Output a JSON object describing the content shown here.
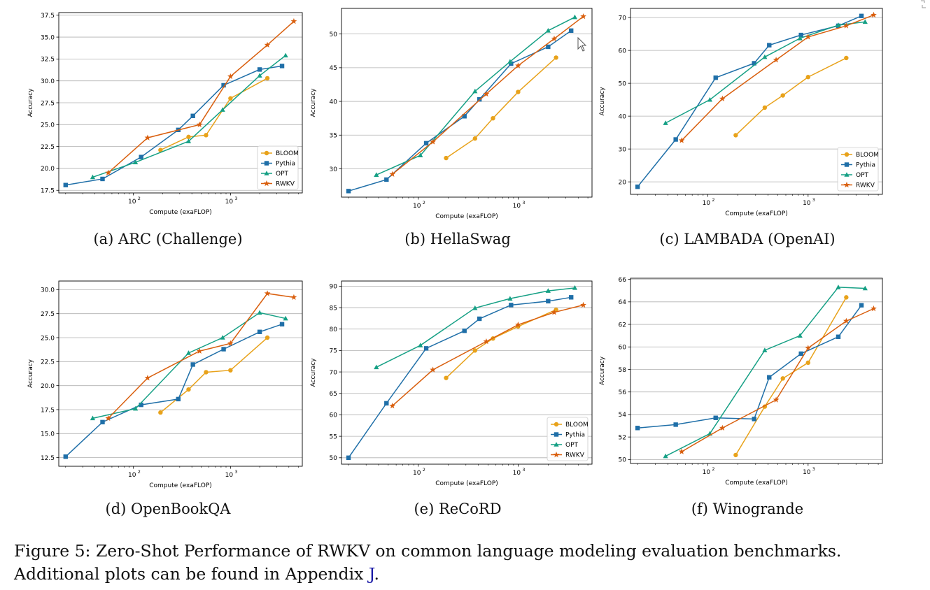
{
  "figure": {
    "caption_text": "Figure 5: Zero-Shot Performance of RWKV on common language modeling evaluation benchmarks. Additional plots can be found in Appendix ",
    "caption_link": "J",
    "caption_end": "."
  },
  "colors": {
    "BLOOM": "#e8a21a",
    "Pythia": "#1f6fa8",
    "OPT": "#16a085",
    "RWKV": "#d95f0e"
  },
  "cursor_icon": "mouse-pointer-icon",
  "chart_data": [
    {
      "type": "line",
      "caption": "(a) ARC (Challenge)",
      "xlabel": "Compute (exaFLOP)",
      "ylabel": "Accuracy",
      "xscale": "log",
      "xlim": [
        17,
        5500
      ],
      "ylim": [
        17.2,
        37.8
      ],
      "yticks": [
        17.5,
        20.0,
        22.5,
        25.0,
        27.5,
        30.0,
        32.5,
        35.0,
        37.5
      ],
      "ytick_labels": [
        "17.5",
        "20.0",
        "22.5",
        "25.0",
        "27.5",
        "30.0",
        "32.5",
        "35.0",
        "37.5"
      ],
      "grid": "horizontal",
      "legend": "bottom-right",
      "series": [
        {
          "name": "BLOOM",
          "marker": "circle",
          "x": [
            190,
            370,
            560,
            1000,
            2400
          ],
          "y": [
            22.1,
            23.6,
            23.8,
            28.0,
            30.3
          ]
        },
        {
          "name": "Pythia",
          "marker": "square",
          "x": [
            20,
            48,
            120,
            290,
            410,
            850,
            2000,
            3400
          ],
          "y": [
            18.1,
            18.8,
            21.3,
            24.4,
            26.0,
            29.5,
            31.3,
            31.7
          ]
        },
        {
          "name": "OPT",
          "marker": "triangle",
          "x": [
            38,
            105,
            370,
            830,
            2000,
            3700
          ],
          "y": [
            19.0,
            20.7,
            23.1,
            26.7,
            30.6,
            32.9
          ]
        },
        {
          "name": "RWKV",
          "marker": "star",
          "x": [
            55,
            140,
            480,
            1000,
            2400,
            4500
          ],
          "y": [
            19.5,
            23.5,
            25.0,
            30.5,
            34.1,
            36.8
          ]
        }
      ]
    },
    {
      "type": "line",
      "caption": "(b) HellaSwag",
      "xlabel": "Compute (exaFLOP)",
      "ylabel": "Accuracy",
      "xscale": "log",
      "xlim": [
        17,
        5500
      ],
      "ylim": [
        25.8,
        53.8
      ],
      "yticks": [
        30,
        35,
        40,
        45,
        50
      ],
      "ytick_labels": [
        "30",
        "35",
        "40",
        "45",
        "50"
      ],
      "grid": "horizontal",
      "legend": "none",
      "series": [
        {
          "name": "BLOOM",
          "marker": "circle",
          "x": [
            190,
            370,
            560,
            1000,
            2400
          ],
          "y": [
            31.6,
            34.5,
            37.5,
            41.4,
            46.5
          ]
        },
        {
          "name": "Pythia",
          "marker": "square",
          "x": [
            20,
            48,
            120,
            290,
            410,
            850,
            2000,
            3400
          ],
          "y": [
            26.7,
            28.4,
            33.8,
            37.8,
            40.3,
            45.6,
            48.1,
            50.5
          ]
        },
        {
          "name": "OPT",
          "marker": "triangle",
          "x": [
            38,
            105,
            370,
            830,
            2000,
            3700
          ],
          "y": [
            29.1,
            32.0,
            41.5,
            45.9,
            50.5,
            52.5
          ]
        },
        {
          "name": "RWKV",
          "marker": "star",
          "x": [
            55,
            140,
            480,
            1000,
            2300,
            4500
          ],
          "y": [
            29.2,
            34.0,
            41.1,
            45.3,
            49.3,
            52.6
          ]
        }
      ]
    },
    {
      "type": "line",
      "caption": "(c) LAMBADA (OpenAI)",
      "xlabel": "Compute (exaFLOP)",
      "ylabel": "Accuracy",
      "xscale": "log",
      "xlim": [
        17,
        5500
      ],
      "ylim": [
        16.2,
        72.8
      ],
      "yticks": [
        20,
        30,
        40,
        50,
        60,
        70
      ],
      "ytick_labels": [
        "20",
        "30",
        "40",
        "50",
        "60",
        "70"
      ],
      "grid": "horizontal",
      "legend": "bottom-right",
      "series": [
        {
          "name": "BLOOM",
          "marker": "circle",
          "x": [
            190,
            370,
            560,
            1000,
            2400
          ],
          "y": [
            34.2,
            42.6,
            46.3,
            51.9,
            57.7
          ]
        },
        {
          "name": "Pythia",
          "marker": "square",
          "x": [
            20,
            48,
            120,
            290,
            410,
            850,
            2000,
            3400
          ],
          "y": [
            18.5,
            32.9,
            51.7,
            56.1,
            61.6,
            64.7,
            67.5,
            70.5
          ]
        },
        {
          "name": "OPT",
          "marker": "triangle",
          "x": [
            38,
            105,
            370,
            830,
            2000,
            3700
          ],
          "y": [
            37.9,
            45.0,
            58.0,
            63.7,
            67.7,
            68.7
          ]
        },
        {
          "name": "RWKV",
          "marker": "star",
          "x": [
            55,
            140,
            480,
            1000,
            2400,
            4500
          ],
          "y": [
            32.6,
            45.3,
            57.1,
            64.1,
            67.5,
            70.8
          ]
        }
      ]
    },
    {
      "type": "line",
      "caption": "(d) OpenBookQA",
      "xlabel": "Compute (exaFLOP)",
      "ylabel": "Accuracy",
      "xscale": "log",
      "xlim": [
        17,
        5500
      ],
      "ylim": [
        11.6,
        30.9
      ],
      "yticks": [
        12.5,
        15.0,
        17.5,
        20.0,
        22.5,
        25.0,
        27.5,
        30.0
      ],
      "ytick_labels": [
        "12.5",
        "15.0",
        "17.5",
        "20.0",
        "22.5",
        "25.0",
        "27.5",
        "30.0"
      ],
      "grid": "horizontal",
      "legend": "none",
      "series": [
        {
          "name": "BLOOM",
          "marker": "circle",
          "x": [
            190,
            370,
            560,
            1000,
            2400
          ],
          "y": [
            17.2,
            19.6,
            21.4,
            21.6,
            25.0
          ]
        },
        {
          "name": "Pythia",
          "marker": "square",
          "x": [
            20,
            48,
            120,
            290,
            410,
            850,
            2000,
            3400
          ],
          "y": [
            12.6,
            16.2,
            18.0,
            18.6,
            22.2,
            23.8,
            25.6,
            26.4
          ]
        },
        {
          "name": "OPT",
          "marker": "triangle",
          "x": [
            38,
            105,
            370,
            830,
            2000,
            3700
          ],
          "y": [
            16.6,
            17.6,
            23.4,
            25.0,
            27.6,
            27.0
          ]
        },
        {
          "name": "RWKV",
          "marker": "star",
          "x": [
            55,
            140,
            480,
            1000,
            2400,
            4500
          ],
          "y": [
            16.6,
            20.8,
            23.6,
            24.4,
            29.6,
            29.2
          ]
        }
      ]
    },
    {
      "type": "line",
      "caption": "(e) ReCoRD",
      "xlabel": "Compute (exaFLOP)",
      "ylabel": "Accuracy",
      "xscale": "log",
      "xlim": [
        17,
        5500
      ],
      "ylim": [
        48.5,
        91.2
      ],
      "yticks": [
        50,
        55,
        60,
        65,
        70,
        75,
        80,
        85,
        90
      ],
      "ytick_labels": [
        "50",
        "55",
        "60",
        "65",
        "70",
        "75",
        "80",
        "85",
        "90"
      ],
      "grid": "horizontal",
      "legend": "bottom-right",
      "series": [
        {
          "name": "BLOOM",
          "marker": "circle",
          "x": [
            190,
            370,
            560,
            1000,
            2400
          ],
          "y": [
            68.6,
            75.0,
            77.8,
            80.6,
            84.5
          ]
        },
        {
          "name": "Pythia",
          "marker": "square",
          "x": [
            20,
            48,
            120,
            290,
            410,
            850,
            2000,
            3400
          ],
          "y": [
            50.0,
            62.7,
            75.5,
            79.6,
            82.4,
            85.6,
            86.5,
            87.4
          ]
        },
        {
          "name": "OPT",
          "marker": "triangle",
          "x": [
            38,
            105,
            370,
            830,
            2000,
            3700
          ],
          "y": [
            71.1,
            76.2,
            84.9,
            87.1,
            88.9,
            89.6
          ]
        },
        {
          "name": "RWKV",
          "marker": "star",
          "x": [
            55,
            140,
            480,
            1000,
            2300,
            4500
          ],
          "y": [
            62.1,
            70.5,
            77.1,
            81.0,
            83.9,
            85.6
          ]
        }
      ]
    },
    {
      "type": "line",
      "caption": "(f) Winogrande",
      "xlabel": "Compute (exaFLOP)",
      "ylabel": "Accuracy",
      "xscale": "log",
      "xlim": [
        17,
        5500
      ],
      "ylim": [
        49.65,
        66.1
      ],
      "yticks": [
        50,
        52,
        54,
        56,
        58,
        60,
        62,
        64,
        66
      ],
      "ytick_labels": [
        "50",
        "52",
        "54",
        "56",
        "58",
        "60",
        "62",
        "64",
        "66"
      ],
      "grid": "horizontal",
      "legend": "none",
      "series": [
        {
          "name": "BLOOM",
          "marker": "circle",
          "x": [
            190,
            370,
            560,
            1000,
            2400
          ],
          "y": [
            50.4,
            54.7,
            57.2,
            58.6,
            64.4
          ]
        },
        {
          "name": "Pythia",
          "marker": "square",
          "x": [
            20,
            48,
            120,
            290,
            410,
            850,
            2000,
            3400
          ],
          "y": [
            52.8,
            53.1,
            53.7,
            53.6,
            57.3,
            59.4,
            60.9,
            63.7
          ]
        },
        {
          "name": "OPT",
          "marker": "triangle",
          "x": [
            38,
            105,
            370,
            830,
            2000,
            3700
          ],
          "y": [
            50.3,
            52.3,
            59.7,
            61.0,
            65.3,
            65.2
          ]
        },
        {
          "name": "RWKV",
          "marker": "star",
          "x": [
            55,
            140,
            480,
            1000,
            2400,
            4500
          ],
          "y": [
            50.7,
            52.8,
            55.3,
            59.9,
            62.3,
            63.4
          ]
        }
      ]
    }
  ]
}
